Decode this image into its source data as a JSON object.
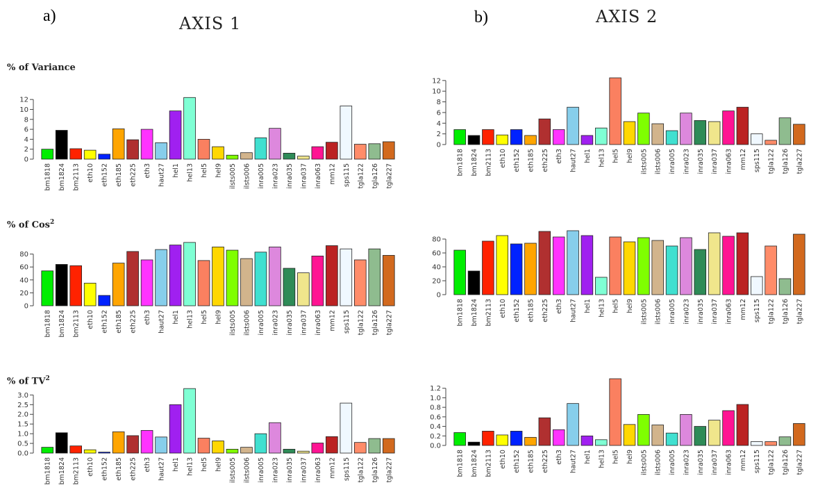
{
  "panel_labels": {
    "a": "a)",
    "b": "b)"
  },
  "axis_titles": {
    "axis1": "AXIS 1",
    "axis2": "AXIS 2"
  },
  "row_labels": {
    "variance": "% of Variance",
    "cos_prefix": "% of Cos",
    "tv_prefix": "% of TV",
    "superscript": "2"
  },
  "categories": [
    "bm1818",
    "bm1824",
    "bm2113",
    "eth10",
    "eth152",
    "eth185",
    "eth225",
    "eth3",
    "haut27",
    "hel1",
    "hel13",
    "hel5",
    "hel9",
    "ilsts005",
    "ilsts006",
    "inra005",
    "inra023",
    "inra035",
    "inra037",
    "inra063",
    "mm12",
    "sps115",
    "tgla122",
    "tgla126",
    "tgla227"
  ],
  "colors": [
    "#00ee00",
    "#000000",
    "#ff2200",
    "#ffff00",
    "#0022ff",
    "#ffa500",
    "#b03030",
    "#ff33ff",
    "#87ceeb",
    "#a020f0",
    "#7fffd4",
    "#fa8060",
    "#ffd700",
    "#7fff00",
    "#d2b48c",
    "#40e0d0",
    "#dd88dd",
    "#2e8b57",
    "#f0e68c",
    "#ff1493",
    "#bb2222",
    "#f0f8ff",
    "#ff8c69",
    "#8fbc8f",
    "#d2691e"
  ],
  "chart_data": [
    {
      "type": "bar",
      "panel": "AXIS 1",
      "row": "% of Variance",
      "ylim": [
        0,
        13
      ],
      "yticks": [
        0,
        2,
        4,
        6,
        8,
        10,
        12
      ],
      "values": [
        2.0,
        5.8,
        2.1,
        1.8,
        1.0,
        6.1,
        3.9,
        6.0,
        3.3,
        9.7,
        12.4,
        4.0,
        2.5,
        0.8,
        1.3,
        4.3,
        6.2,
        1.2,
        0.6,
        2.5,
        3.4,
        10.7,
        3.0,
        3.1,
        3.5
      ]
    },
    {
      "type": "bar",
      "panel": "AXIS 1",
      "row": "% of Cos2",
      "ylim": [
        0,
        100
      ],
      "yticks": [
        0,
        20,
        40,
        60,
        80
      ],
      "values": [
        54,
        64,
        62,
        35,
        16,
        66,
        84,
        71,
        87,
        94,
        98,
        70,
        91,
        86,
        73,
        83,
        91,
        58,
        51,
        77,
        93,
        88,
        71,
        88,
        78
      ]
    },
    {
      "type": "bar",
      "panel": "AXIS 1",
      "row": "% of TV2",
      "ylim": [
        0,
        3.3
      ],
      "yticks": [
        0.0,
        0.5,
        1.0,
        1.5,
        2.0,
        2.5,
        3.0
      ],
      "values": [
        0.3,
        1.05,
        0.37,
        0.17,
        0.05,
        1.1,
        0.9,
        1.17,
        0.83,
        2.5,
        3.33,
        0.77,
        0.63,
        0.2,
        0.3,
        1.0,
        1.57,
        0.2,
        0.1,
        0.52,
        0.85,
        2.58,
        0.55,
        0.75,
        0.75
      ]
    },
    {
      "type": "bar",
      "panel": "AXIS 2",
      "row": "% of Variance",
      "ylim": [
        0,
        12.5
      ],
      "yticks": [
        0,
        2,
        4,
        6,
        8,
        10,
        12
      ],
      "values": [
        2.8,
        1.7,
        2.8,
        1.8,
        2.8,
        1.7,
        4.8,
        2.8,
        7.0,
        1.7,
        3.1,
        12.5,
        4.3,
        5.9,
        3.9,
        2.6,
        5.9,
        4.5,
        4.3,
        6.3,
        7.0,
        2.0,
        0.8,
        5.0,
        3.8
      ]
    },
    {
      "type": "bar",
      "panel": "AXIS 2",
      "row": "% of Cos2",
      "ylim": [
        0,
        95
      ],
      "yticks": [
        0,
        20,
        40,
        60,
        80
      ],
      "values": [
        64,
        34,
        77,
        85,
        73,
        74,
        91,
        83,
        92,
        85,
        25,
        83,
        76,
        82,
        78,
        70,
        82,
        65,
        89,
        84,
        89,
        26,
        70,
        23,
        87
      ]
    },
    {
      "type": "bar",
      "panel": "AXIS 2",
      "row": "% of TV2",
      "ylim": [
        0,
        1.4
      ],
      "yticks": [
        0.0,
        0.2,
        0.4,
        0.6,
        0.8,
        1.0,
        1.2
      ],
      "values": [
        0.27,
        0.07,
        0.3,
        0.22,
        0.3,
        0.17,
        0.58,
        0.33,
        0.88,
        0.2,
        0.12,
        1.4,
        0.44,
        0.65,
        0.43,
        0.26,
        0.65,
        0.4,
        0.53,
        0.73,
        0.86,
        0.08,
        0.08,
        0.18,
        0.46
      ]
    }
  ]
}
